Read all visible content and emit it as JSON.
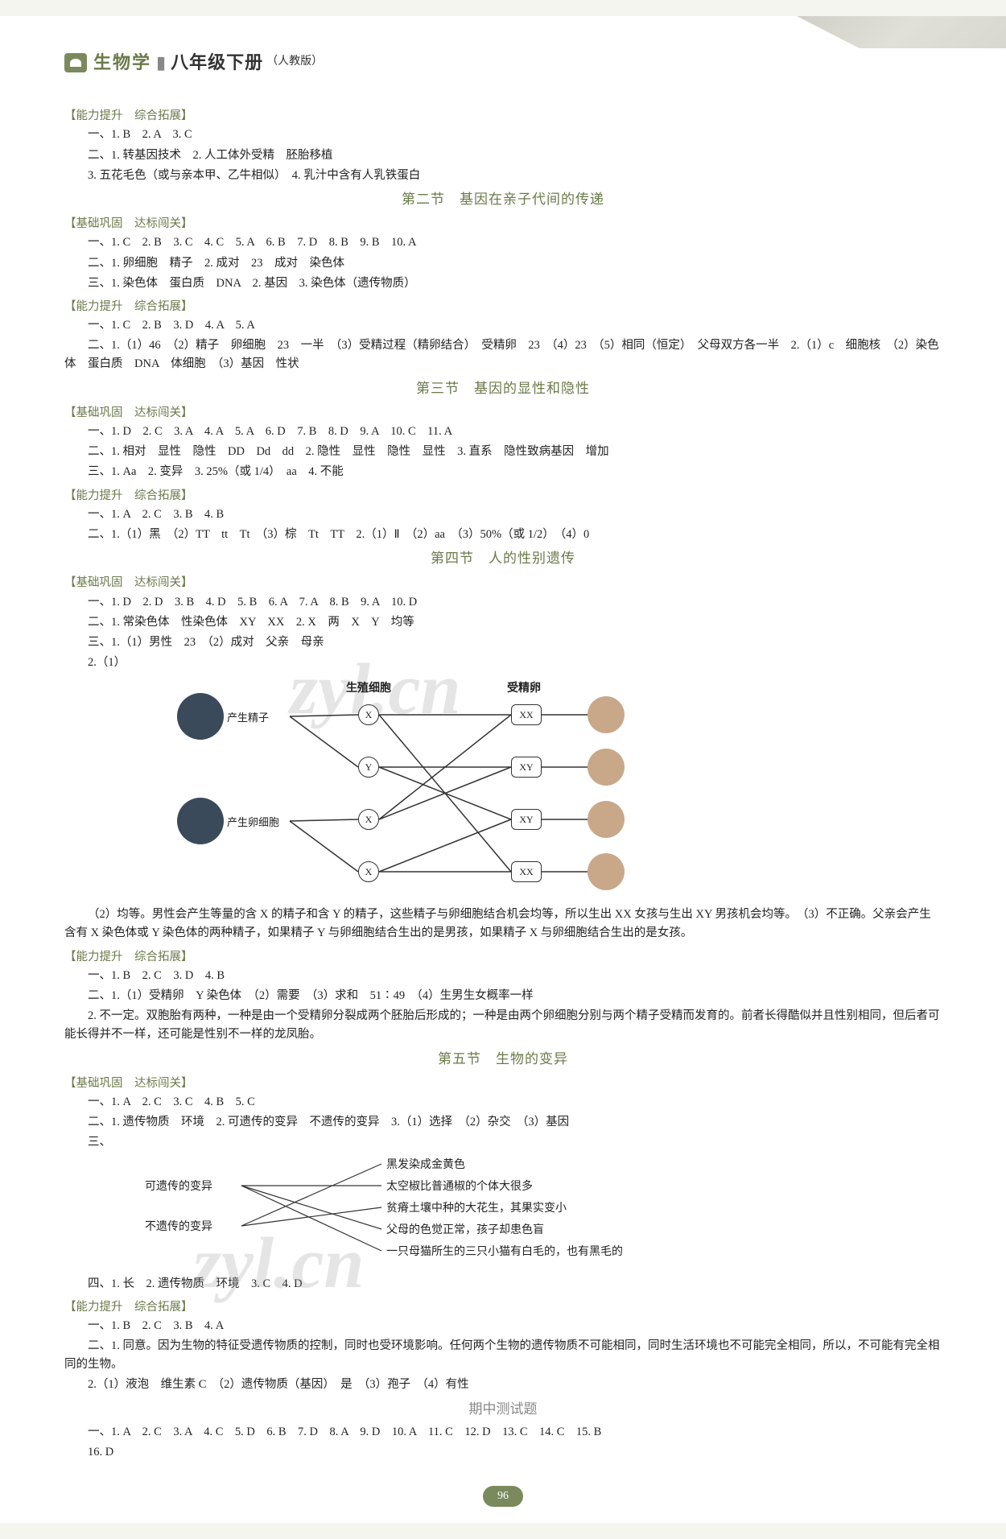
{
  "header": {
    "subject": "生物学",
    "grade": "八年级下册",
    "edition": "（人教版）"
  },
  "colors": {
    "accent": "#6a7a4a",
    "badge": "#7a8a5c",
    "text": "#222222",
    "muted": "#888888",
    "page_bg": "#ffffff"
  },
  "watermark": "zyl.cn",
  "page_number": "96",
  "sections": [
    {
      "bracket": "【能力提升　综合拓展】",
      "lines": [
        "一、1. B　2. A　3. C",
        "二、1. 转基因技术　2. 人工体外受精　胚胎移植",
        "3. 五花毛色（或与亲本甲、乙牛相似）　4. 乳汁中含有人乳铁蛋白"
      ]
    },
    {
      "title": "第二节　基因在亲子代间的传递"
    },
    {
      "bracket": "【基础巩固　达标闯关】",
      "lines": [
        "一、1. C　2. B　3. C　4. C　5. A　6. B　7. D　8. B　9. B　10. A",
        "二、1. 卵细胞　精子　2. 成对　23　成对　染色体",
        "三、1. 染色体　蛋白质　DNA　2. 基因　3. 染色体（遗传物质）"
      ]
    },
    {
      "bracket": "【能力提升　综合拓展】",
      "lines": [
        "一、1. C　2. B　3. D　4. A　5. A",
        "二、1.（1）46　（2）精子　卵细胞　23　一半　（3）受精过程（精卵结合）　受精卵　23　（4）23　（5）相同（恒定）　父母双方各一半　2.（1）c　细胞核　（2）染色体　蛋白质　DNA　体细胞　（3）基因　性状"
      ]
    },
    {
      "title": "第三节　基因的显性和隐性"
    },
    {
      "bracket": "【基础巩固　达标闯关】",
      "lines": [
        "一、1. D　2. C　3. A　4. A　5. A　6. D　7. B　8. D　9. A　10. C　11. A",
        "二、1. 相对　显性　隐性　DD　Dd　dd　2. 隐性　显性　隐性　显性　3. 直系　隐性致病基因　增加",
        "三、1. Aa　2. 变异　3. 25%（或 1/4）　aa　4. 不能"
      ]
    },
    {
      "bracket": "【能力提升　综合拓展】",
      "lines": [
        "一、1. A　2. C　3. B　4. B",
        "二、1.（1）黑　（2）TT　tt　Tt　（3）棕　Tt　TT　2.（1）Ⅱ　（2）aa　（3）50%（或 1/2）　（4）0"
      ]
    },
    {
      "title": "第四节　人的性别遗传"
    },
    {
      "bracket": "【基础巩固　达标闯关】",
      "lines": [
        "一、1. D　2. D　3. B　4. D　5. B　6. A　7. A　8. B　9. A　10. D",
        "二、1. 常染色体　性染色体　XY　XX　2. X　两　X　Y　均等",
        "三、1.（1）男性　23　（2）成对　父亲　母亲",
        "2.（1）"
      ]
    },
    {
      "diagram": "sex_inheritance"
    },
    {
      "lines_noindent": [
        "（2）均等。男性会产生等量的含 X 的精子和含 Y 的精子，这些精子与卵细胞结合机会均等，所以生出 XX 女孩与生出 XY 男孩机会均等。　（3）不正确。父亲会产生含有 X 染色体或 Y 染色体的两种精子，如果精子 Y 与卵细胞结合生出的是男孩，如果精子 X 与卵细胞结合生出的是女孩。"
      ]
    },
    {
      "bracket": "【能力提升　综合拓展】",
      "lines": [
        "一、1. B　2. C　3. D　4. B",
        "二、1.（1）受精卵　Y 染色体　（2）需要　（3）求和　51∶49　（4）生男生女概率一样",
        "2. 不一定。双胞胎有两种，一种是由一个受精卵分裂成两个胚胎后形成的；一种是由两个卵细胞分别与两个精子受精而发育的。前者长得酷似并且性别相同，但后者可能长得并不一样，还可能是性别不一样的龙凤胎。"
      ]
    },
    {
      "title": "第五节　生物的变异"
    },
    {
      "bracket": "【基础巩固　达标闯关】",
      "lines": [
        "一、1. A　2. C　3. C　4. B　5. C",
        "二、1. 遗传物质　环境　2. 可遗传的变异　不遗传的变异　3.（1）选择　（2）杂交　（3）基因",
        "三、"
      ]
    },
    {
      "diagram": "variation_mapping"
    },
    {
      "lines": [
        "四、1. 长　2. 遗传物质　环境　3. C　4. D"
      ]
    },
    {
      "bracket": "【能力提升　综合拓展】",
      "lines": [
        "一、1. B　2. C　3. B　4. A",
        "二、1. 同意。因为生物的特征受遗传物质的控制，同时也受环境影响。任何两个生物的遗传物质不可能相同，同时生活环境也不可能完全相同，所以，不可能有完全相同的生物。",
        "2.（1）液泡　维生素 C　（2）遗传物质（基因）　是　（3）孢子　（4）有性"
      ]
    },
    {
      "center": "期中测试题"
    },
    {
      "lines": [
        "一、1. A　2. C　3. A　4. C　5. D　6. B　7. D　8. A　9. D　10. A　11. C　12. D　13. C　14. C　15. B",
        "16. D"
      ]
    }
  ],
  "diagram1": {
    "top_labels": {
      "left": "生殖细胞",
      "right": "受精卵"
    },
    "left_parents": [
      {
        "label": "产生精子",
        "color": "#3a4a5a"
      },
      {
        "label": "产生卵细胞",
        "color": "#3a4a5a"
      }
    ],
    "gametes": [
      "X",
      "Y",
      "X",
      "X"
    ],
    "zygotes": [
      "XX",
      "XY",
      "XY",
      "XX"
    ],
    "child_color": "#c8a888",
    "line_color": "#333333",
    "node_border": "#333333"
  },
  "diagram2": {
    "left_items": [
      "可遗传的变异",
      "不遗传的变异"
    ],
    "right_items": [
      "黑发染成金黄色",
      "太空椒比普通椒的个体大很多",
      "贫瘠土壤中种的大花生，其果实变小",
      "父母的色觉正常，孩子却患色盲",
      "一只母猫所生的三只小猫有白毛的，也有黑毛的"
    ],
    "edges": [
      [
        0,
        1
      ],
      [
        0,
        3
      ],
      [
        0,
        4
      ],
      [
        1,
        0
      ],
      [
        1,
        2
      ]
    ],
    "line_color": "#333333"
  }
}
